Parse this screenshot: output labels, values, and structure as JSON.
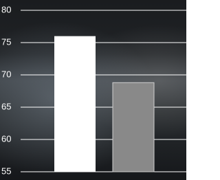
{
  "chart_data": {
    "type": "bar",
    "categories": [
      null,
      null
    ],
    "series": [
      {
        "values": [
          76,
          68.8
        ],
        "colors": [
          "#ffffff",
          "#898989"
        ]
      }
    ],
    "ylim": [
      55,
      80
    ],
    "yticks": [
      55,
      60,
      65,
      70,
      75,
      80
    ],
    "grid": true
  }
}
